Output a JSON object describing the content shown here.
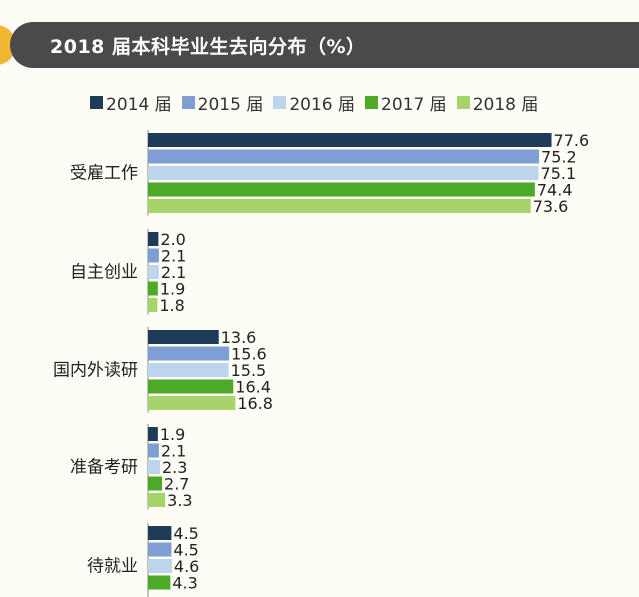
{
  "header": {
    "title": "2018 届本科毕业生去向分布（%）"
  },
  "colors": {
    "header_bg": "#4a4a4a",
    "accent": "#f2b632",
    "series": [
      "#1f3b5a",
      "#7f9ed4",
      "#bcd4ec",
      "#4caa28",
      "#a6d46a"
    ]
  },
  "chart_data": {
    "type": "bar",
    "orientation": "horizontal",
    "title": "2018 届本科毕业生去向分布（%）",
    "categories": [
      "受雇工作",
      "自主创业",
      "国内外读研",
      "准备考研",
      "待就业"
    ],
    "series": [
      {
        "name": "2014 届",
        "values": [
          77.6,
          2.0,
          13.6,
          1.9,
          4.5
        ]
      },
      {
        "name": "2015 届",
        "values": [
          75.2,
          2.1,
          15.6,
          2.1,
          4.5
        ]
      },
      {
        "name": "2016 届",
        "values": [
          75.1,
          2.1,
          15.5,
          2.3,
          4.6
        ]
      },
      {
        "name": "2017 届",
        "values": [
          74.4,
          1.9,
          16.4,
          2.7,
          4.3
        ]
      },
      {
        "name": "2018 届",
        "values": [
          73.6,
          1.8,
          16.8,
          3.3,
          null
        ]
      }
    ],
    "xlim": [
      0,
      80
    ],
    "legend_position": "top",
    "grid": false
  }
}
